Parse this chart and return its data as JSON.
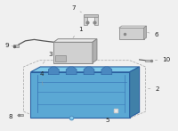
{
  "bg_color": "#f0f0f0",
  "tray_face": "#5ba8d4",
  "tray_top": "#7ec8e8",
  "tray_right": "#4080a8",
  "tray_inner": "#4a90c0",
  "tray_edge": "#2a60a0",
  "tray_wall": "#3a78b8",
  "box_face": "#d0d0d0",
  "box_top": "#e8e8e8",
  "box_right": "#b0b0b0",
  "box_edge": "#888888",
  "line_color": "#555555",
  "label_color": "#222222",
  "dash_color": "#aaaaaa",
  "font_size": 5.2,
  "white": "#ffffff"
}
